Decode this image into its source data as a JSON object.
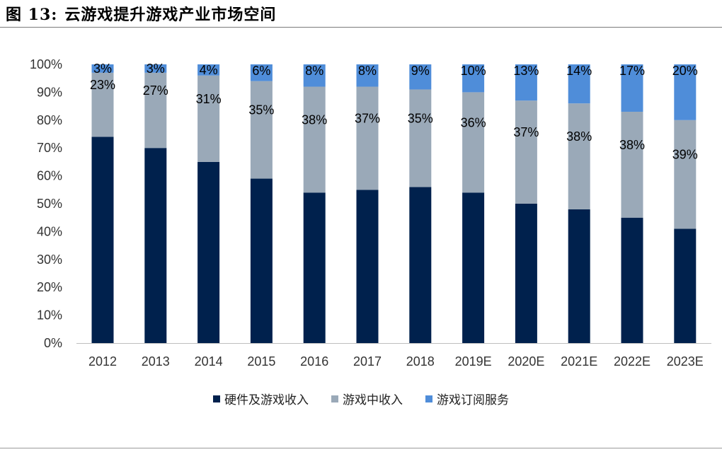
{
  "header": {
    "figure_no": "图 13:",
    "title": "云游戏提升游戏产业市场空间"
  },
  "colors": {
    "hardware": "#00214d",
    "in_game": "#9aa9b8",
    "subscription": "#4f8dd9"
  },
  "chart_data": {
    "type": "bar",
    "stacked": true,
    "percent_stacked": true,
    "title": "",
    "xlabel": "",
    "ylabel": "",
    "ylim": [
      0,
      100
    ],
    "yticks": [
      "0%",
      "10%",
      "20%",
      "30%",
      "40%",
      "50%",
      "60%",
      "70%",
      "80%",
      "90%",
      "100%"
    ],
    "categories": [
      "2012",
      "2013",
      "2014",
      "2015",
      "2016",
      "2017",
      "2018",
      "2019E",
      "2020E",
      "2021E",
      "2022E",
      "2023E"
    ],
    "series": [
      {
        "name": "硬件及游戏收入",
        "values": [
          74,
          70,
          65,
          59,
          54,
          55,
          56,
          54,
          50,
          48,
          45,
          41
        ],
        "labels": [
          "",
          "",
          "",
          "",
          "",
          "",
          "",
          "",
          "",
          "",
          "",
          ""
        ]
      },
      {
        "name": "游戏中收入",
        "values": [
          23,
          27,
          31,
          35,
          38,
          37,
          35,
          36,
          37,
          38,
          38,
          39
        ],
        "labels": [
          "23%",
          "27%",
          "31%",
          "35%",
          "38%",
          "37%",
          "35%",
          "36%",
          "37%",
          "38%",
          "38%",
          "39%"
        ]
      },
      {
        "name": "游戏订阅服务",
        "values": [
          3,
          3,
          4,
          6,
          8,
          8,
          9,
          10,
          13,
          14,
          17,
          20
        ],
        "labels": [
          "3%",
          "3%",
          "4%",
          "6%",
          "8%",
          "8%",
          "9%",
          "10%",
          "13%",
          "14%",
          "17%",
          "20%"
        ]
      }
    ],
    "legend_position": "bottom",
    "grid": false
  }
}
